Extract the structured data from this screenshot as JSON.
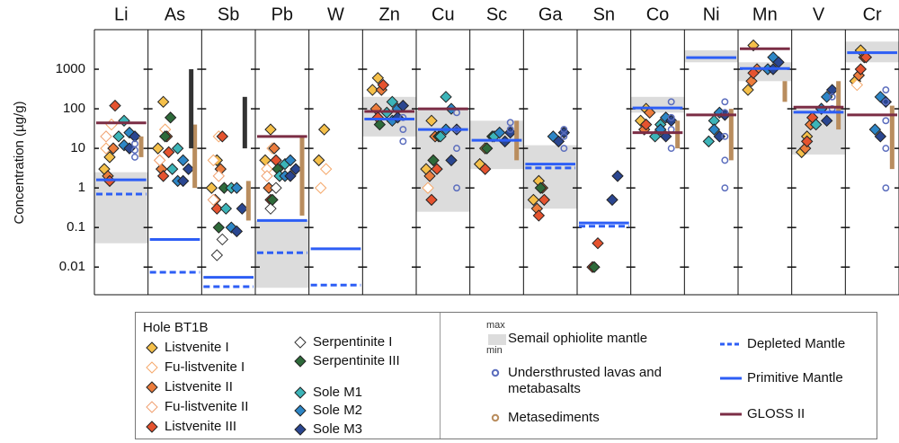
{
  "chart_data": {
    "type": "strip",
    "ylabel": "Concentration (µg/g)",
    "categories": [
      "Li",
      "As",
      "Sb",
      "Pb",
      "W",
      "Zn",
      "Cu",
      "Sc",
      "Ga",
      "Sn",
      "Co",
      "Ni",
      "Mn",
      "V",
      "Cr"
    ],
    "log_scale": true,
    "ylim": [
      0.002,
      10000
    ],
    "yticks": [
      0.01,
      0.1,
      1,
      10,
      100,
      1000
    ],
    "legend_title": "Hole BT1B",
    "series": [
      {
        "name": "Listvenite I",
        "kind": "diamond",
        "open": false,
        "color": "#f5c04a",
        "values": [
          [
            3,
            6
          ],
          [
            10,
            150
          ],
          [
            1,
            5
          ],
          [
            5,
            30
          ],
          [
            5,
            30
          ],
          [
            300,
            600
          ],
          [
            3,
            50
          ],
          [
            4,
            10
          ],
          [
            0.5,
            1.5
          ],
          null,
          [
            50,
            100
          ],
          null,
          [
            300,
            4000
          ],
          [
            8,
            20
          ],
          [
            500,
            3000
          ]
        ]
      },
      {
        "name": "Fu-listvenite I",
        "kind": "diamond",
        "open": true,
        "color": "#f5a86a",
        "values": [
          [
            10,
            40
          ],
          [
            5,
            30
          ],
          [
            5,
            20
          ],
          [
            3,
            10
          ],
          [
            1,
            3
          ],
          null,
          [
            1,
            5
          ],
          null,
          null,
          null,
          null,
          null,
          null,
          null,
          [
            400
          ]
        ]
      },
      {
        "name": "Listvenite II",
        "kind": "diamond",
        "open": false,
        "color": "#ec7c3c",
        "values": [
          [
            2,
            10
          ],
          [
            3,
            20
          ],
          [
            0.5,
            3
          ],
          [
            1,
            10
          ],
          null,
          [
            100,
            300
          ],
          [
            2,
            20
          ],
          null,
          [
            0.3,
            1
          ],
          null,
          [
            30,
            80
          ],
          null,
          [
            500,
            1000
          ],
          [
            10,
            40
          ],
          [
            700,
            2000
          ]
        ]
      },
      {
        "name": "Fu-listvenite II",
        "kind": "diamond",
        "open": true,
        "color": "#f0a070",
        "values": [
          [
            20
          ],
          [
            5
          ],
          [
            0.5,
            2
          ],
          [
            2
          ],
          null,
          null,
          null,
          null,
          null,
          null,
          null,
          null,
          null,
          null,
          null
        ]
      },
      {
        "name": "Listvenite III",
        "kind": "diamond",
        "open": false,
        "color": "#e5532f",
        "values": [
          [
            1.5,
            120
          ],
          [
            2,
            8
          ],
          [
            0.3,
            20
          ],
          [
            0.5,
            5
          ],
          null,
          [
            60,
            400
          ],
          [
            0.5,
            3
          ],
          [
            3
          ],
          [
            0.2,
            0.5
          ],
          [
            0.01,
            0.04
          ],
          [
            40
          ],
          null,
          [
            800
          ],
          [
            15,
            60
          ],
          [
            1000,
            2000
          ]
        ]
      },
      {
        "name": "Serpentinite I",
        "kind": "diamond",
        "open": true,
        "color": "#333333",
        "values": [
          null,
          null,
          [
            0.02,
            0.05
          ],
          [
            0.3,
            1
          ],
          null,
          null,
          null,
          null,
          null,
          null,
          null,
          null,
          null,
          null,
          null
        ]
      },
      {
        "name": "Serpentinite III",
        "kind": "diamond",
        "open": false,
        "color": "#2e6a3a",
        "values": [
          null,
          [
            20,
            60
          ],
          [
            0.1,
            1
          ],
          [
            0.5,
            3
          ],
          null,
          [
            40
          ],
          [
            5,
            20
          ],
          [
            10,
            20
          ],
          [
            1
          ],
          [
            0.01
          ],
          null,
          null,
          null,
          null,
          null
        ]
      },
      {
        "name": "Sole M1",
        "kind": "diamond",
        "open": false,
        "color": "#3cb4b8",
        "values": [
          [
            20,
            50
          ],
          [
            3,
            10
          ],
          [
            0.3,
            1
          ],
          [
            2,
            4
          ],
          null,
          [
            80,
            150
          ],
          [
            20,
            200
          ],
          [
            20
          ],
          null,
          null,
          [
            20,
            40
          ],
          [
            15,
            50
          ],
          null,
          [
            40,
            100
          ],
          null
        ]
      },
      {
        "name": "Sole M2",
        "kind": "diamond",
        "open": false,
        "color": "#2d86c6",
        "values": [
          [
            12,
            25
          ],
          [
            1.5,
            5
          ],
          [
            0.1,
            1
          ],
          [
            2,
            5
          ],
          null,
          [
            50,
            100
          ],
          [
            30,
            100
          ],
          [
            25
          ],
          [
            20
          ],
          null,
          [
            30,
            60
          ],
          [
            30,
            80
          ],
          [
            1000,
            2000
          ],
          [
            100,
            200
          ],
          [
            30,
            200
          ]
        ]
      },
      {
        "name": "Sole M3",
        "kind": "diamond",
        "open": false,
        "color": "#2a4690",
        "values": [
          [
            10,
            20
          ],
          [
            1.5,
            3
          ],
          [
            0.08,
            0.3
          ],
          [
            2,
            3
          ],
          null,
          [
            60,
            120
          ],
          [
            5,
            30
          ],
          [
            15,
            25
          ],
          [
            15,
            25
          ],
          [
            0.5,
            2
          ],
          [
            20,
            50
          ],
          [
            20,
            70
          ],
          [
            1000,
            1500
          ],
          [
            50,
            300
          ],
          [
            20,
            150
          ]
        ]
      },
      {
        "name": "Semail ophiolite mantle",
        "kind": "band",
        "color": "#dcdcdc",
        "max_label": "max",
        "min_label": "min",
        "values": [
          [
            0.04,
            2.5
          ],
          null,
          null,
          [
            0.003,
            0.15
          ],
          null,
          [
            20,
            200
          ],
          [
            0.25,
            100
          ],
          [
            3,
            50
          ],
          [
            0.3,
            12
          ],
          null,
          [
            80,
            200
          ],
          [
            1500,
            3000
          ],
          [
            500,
            1500
          ],
          [
            7,
            100
          ],
          [
            1500,
            5000
          ]
        ]
      },
      {
        "name": "Understhrusted lavas and metabasalts",
        "kind": "circle",
        "color": "#5b6dbd",
        "values": [
          [
            6,
            9,
            13
          ],
          null,
          null,
          null,
          null,
          [
            15,
            30,
            60
          ],
          [
            1,
            10,
            30,
            80
          ],
          [
            30,
            45
          ],
          [
            10,
            20,
            30
          ],
          null,
          [
            10,
            30,
            60,
            150
          ],
          [
            1,
            5,
            20,
            80,
            150
          ],
          null,
          [
            100,
            200
          ],
          [
            1,
            10,
            50,
            150,
            300
          ]
        ]
      },
      {
        "name": "Metasediments",
        "kind": "bar",
        "color": "#b98d5e",
        "values": [
          [
            6,
            20
          ],
          [
            1,
            40
          ],
          [
            0.15,
            1.5
          ],
          [
            0.2,
            20
          ],
          null,
          null,
          null,
          [
            5,
            50
          ],
          null,
          null,
          [
            10,
            50
          ],
          [
            5,
            100
          ],
          [
            150,
            500
          ],
          [
            30,
            500
          ],
          [
            3,
            120
          ]
        ]
      },
      {
        "name": "Depleted Mantle",
        "kind": "level",
        "dash": true,
        "color": "#2d5ef5",
        "values": [
          0.7,
          0.0074,
          0.0032,
          0.023,
          0.0035,
          null,
          null,
          null,
          3.2,
          0.108,
          null,
          null,
          null,
          null,
          null
        ]
      },
      {
        "name": "Primitive Mantle",
        "kind": "level",
        "dash": false,
        "color": "#2d5ef5",
        "values": [
          1.6,
          0.05,
          0.0055,
          0.15,
          0.029,
          55,
          30,
          16,
          4,
          0.13,
          105,
          1960,
          1045,
          82,
          2625
        ]
      },
      {
        "name": "GLOSS II",
        "kind": "level",
        "dash": false,
        "color": "#7b2d45",
        "values": [
          44,
          null,
          null,
          20,
          null,
          86,
          100,
          null,
          null,
          null,
          25,
          70,
          3300,
          110,
          70
        ]
      },
      {
        "kind": "bar",
        "color": "#333333",
        "values": [
          null,
          [
            10,
            1000
          ],
          [
            10,
            200
          ],
          null,
          null,
          null,
          null,
          null,
          null,
          null,
          null,
          null,
          null,
          null,
          null
        ]
      }
    ]
  }
}
